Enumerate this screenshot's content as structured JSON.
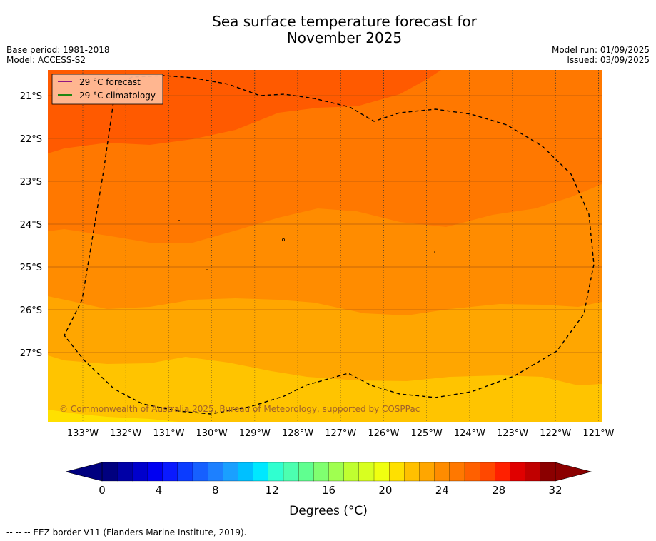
{
  "title_line1": "Sea surface temperature forecast for",
  "title_line2": "November 2025",
  "meta": {
    "base_period": "Base period: 1981-2018",
    "model": "Model: ACCESS-S2",
    "model_run": "Model run: 01/09/2025",
    "issued": "Issued: 03/09/2025"
  },
  "legend": {
    "forecast_label": "29 °C  forecast",
    "climatology_label": "29 °C  climatology",
    "forecast_color": "#800080",
    "climatology_color": "#008000"
  },
  "copyright": "© Commonwealth of Australia 2025, Bureau of Meteorology, supported by COSPPac",
  "lat_labels": [
    "21°S",
    "22°S",
    "23°S",
    "24°S",
    "25°S",
    "26°S",
    "27°S"
  ],
  "lon_labels": [
    "133°W",
    "132°W",
    "131°W",
    "130°W",
    "129°W",
    "128°W",
    "127°W",
    "126°W",
    "125°W",
    "124°W",
    "123°W",
    "122°W",
    "121°W"
  ],
  "colorbar": {
    "ticks": [
      "0",
      "4",
      "8",
      "12",
      "16",
      "20",
      "24",
      "28",
      "32"
    ],
    "label": "Degrees (°C)",
    "colors": [
      "#00007f",
      "#0000a6",
      "#0000cc",
      "#0000f2",
      "#0a1aff",
      "#0b3cff",
      "#1660ff",
      "#1d80ff",
      "#1aa0ff",
      "#00c0ff",
      "#00e8ff",
      "#30ffd0",
      "#4cffb0",
      "#60ff90",
      "#80ff70",
      "#a0ff50",
      "#c0ff30",
      "#d8ff20",
      "#f0ff10",
      "#ffe000",
      "#ffc000",
      "#ffa600",
      "#ff8c00",
      "#ff7800",
      "#ff6000",
      "#ff4800",
      "#ff2000",
      "#e00000",
      "#c00000",
      "#8b0000"
    ],
    "under_color": "#00007f",
    "over_color": "#8b0000"
  },
  "footnote": "--  --  -- EEZ border V11 (Flanders Marine Institute, 2019)."
}
